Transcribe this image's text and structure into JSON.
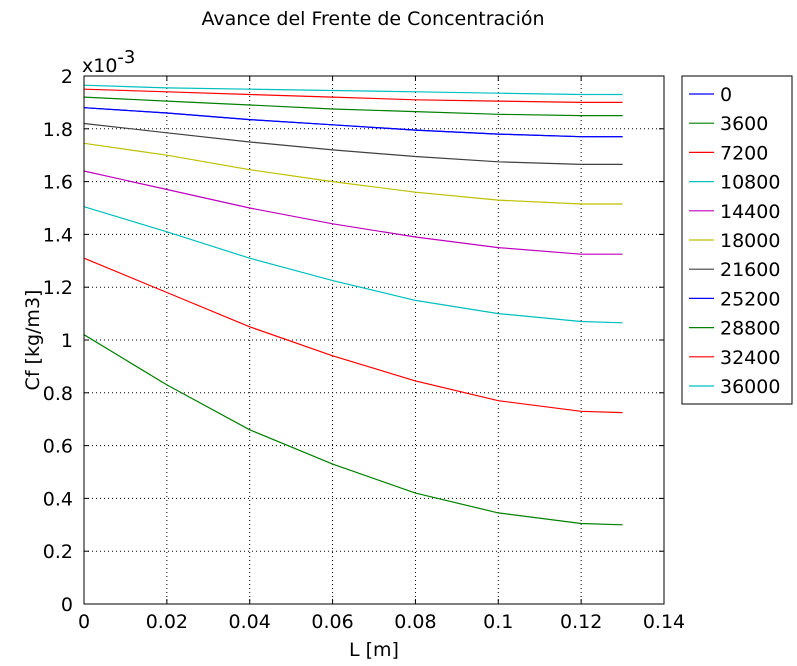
{
  "chart_data": {
    "type": "line",
    "title": "Avance del Frente de Concentración",
    "xlabel": "L [m]",
    "ylabel": "Cf [kg/m3]",
    "y_exponent_label": "x10",
    "y_exponent_power": "-3",
    "xlim": [
      0,
      0.14
    ],
    "ylim": [
      0,
      2
    ],
    "xticks": [
      "0",
      "0.02",
      "0.04",
      "0.06",
      "0.08",
      "0.1",
      "0.12",
      "0.14"
    ],
    "yticks": [
      "0",
      "0.2",
      "0.4",
      "0.6",
      "0.8",
      "1",
      "1.2",
      "1.4",
      "1.6",
      "1.8",
      "2"
    ],
    "grid": true,
    "legend_position": "outside-right-top",
    "x": [
      0,
      0.02,
      0.04,
      0.06,
      0.08,
      0.1,
      0.12,
      0.13
    ],
    "series": [
      {
        "name": "0",
        "color": "#0000ff",
        "values": [
          1.88,
          1.86,
          1.835,
          1.815,
          1.795,
          1.78,
          1.77,
          1.77
        ]
      },
      {
        "name": "3600",
        "color": "#008000",
        "values": [
          1.92,
          1.905,
          1.89,
          1.875,
          1.865,
          1.855,
          1.85,
          1.85
        ]
      },
      {
        "name": "7200",
        "color": "#ff0000",
        "values": [
          1.95,
          1.94,
          1.93,
          1.92,
          1.91,
          1.905,
          1.9,
          1.9
        ]
      },
      {
        "name": "10800",
        "color": "#00bfbf",
        "values": [
          1.965,
          1.955,
          1.95,
          1.945,
          1.94,
          1.935,
          1.93,
          1.93
        ]
      },
      {
        "name": "14400",
        "color": "#bf00bf",
        "values": [
          1.64,
          1.57,
          1.5,
          1.44,
          1.39,
          1.35,
          1.325,
          1.325
        ]
      },
      {
        "name": "18000",
        "color": "#bfbf00",
        "values": [
          1.745,
          1.7,
          1.645,
          1.6,
          1.56,
          1.53,
          1.515,
          1.515
        ]
      },
      {
        "name": "21600",
        "color": "#404040",
        "values": [
          1.82,
          1.785,
          1.75,
          1.72,
          1.695,
          1.675,
          1.665,
          1.665
        ]
      },
      {
        "name": "25200",
        "color": "#0000ff",
        "values": [
          1.88,
          1.86,
          1.835,
          1.815,
          1.795,
          1.78,
          1.77,
          1.77
        ]
      },
      {
        "name": "28800",
        "color": "#008000",
        "values": [
          1.02,
          0.83,
          0.66,
          0.53,
          0.42,
          0.345,
          0.305,
          0.3
        ]
      },
      {
        "name": "32400",
        "color": "#ff0000",
        "values": [
          1.31,
          1.18,
          1.05,
          0.94,
          0.845,
          0.77,
          0.73,
          0.725
        ]
      },
      {
        "name": "36000",
        "color": "#00bfbf",
        "values": [
          1.505,
          1.41,
          1.31,
          1.225,
          1.15,
          1.1,
          1.07,
          1.065
        ]
      }
    ]
  }
}
